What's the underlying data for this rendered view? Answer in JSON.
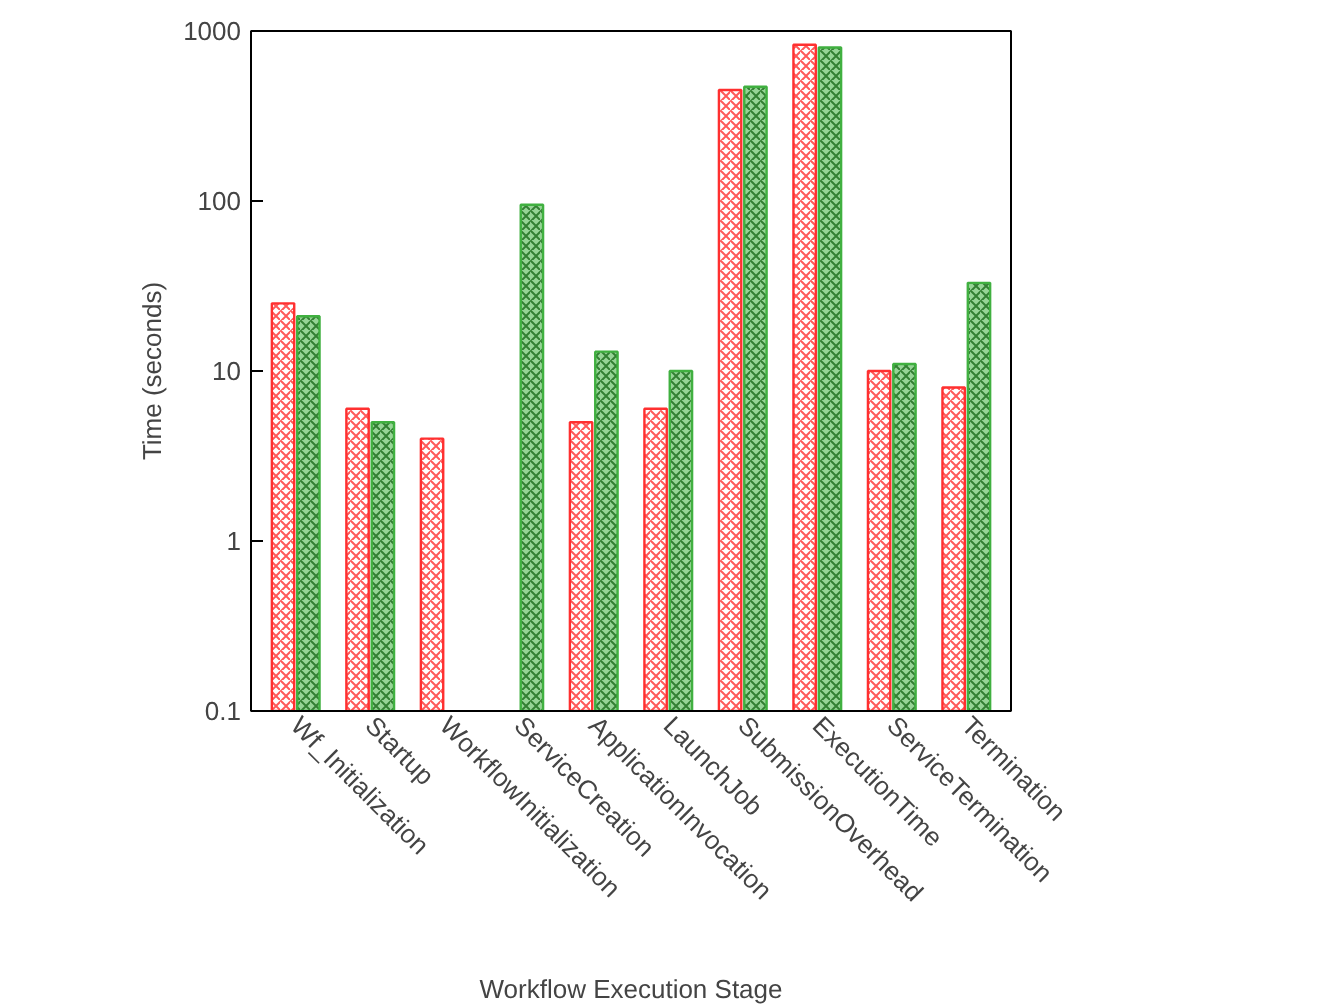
{
  "chart_data": {
    "type": "bar",
    "xlabel": "Workflow Execution Stage",
    "ylabel": "Time (seconds)",
    "log": true,
    "categories": [
      "Wf_Initialization",
      "Startup",
      "WorkflowInitialization",
      "ServiceCreation",
      "ApplicationInvocation",
      "LaunchJob",
      "SubmissionOverhead",
      "ExecutionTime",
      "ServiceTermination",
      "Termination"
    ],
    "series": [
      {
        "color": "#ff3030",
        "values": [
          25,
          6,
          4,
          null,
          5,
          6,
          450,
          830,
          10,
          8
        ]
      },
      {
        "color": "#40b040",
        "values": [
          21,
          5,
          null,
          95,
          13,
          10,
          470,
          800,
          11,
          33
        ]
      }
    ],
    "ylim": [
      0.1,
      1000
    ],
    "yticks": [
      0.1,
      1,
      10,
      100,
      1000
    ],
    "grid": false
  }
}
